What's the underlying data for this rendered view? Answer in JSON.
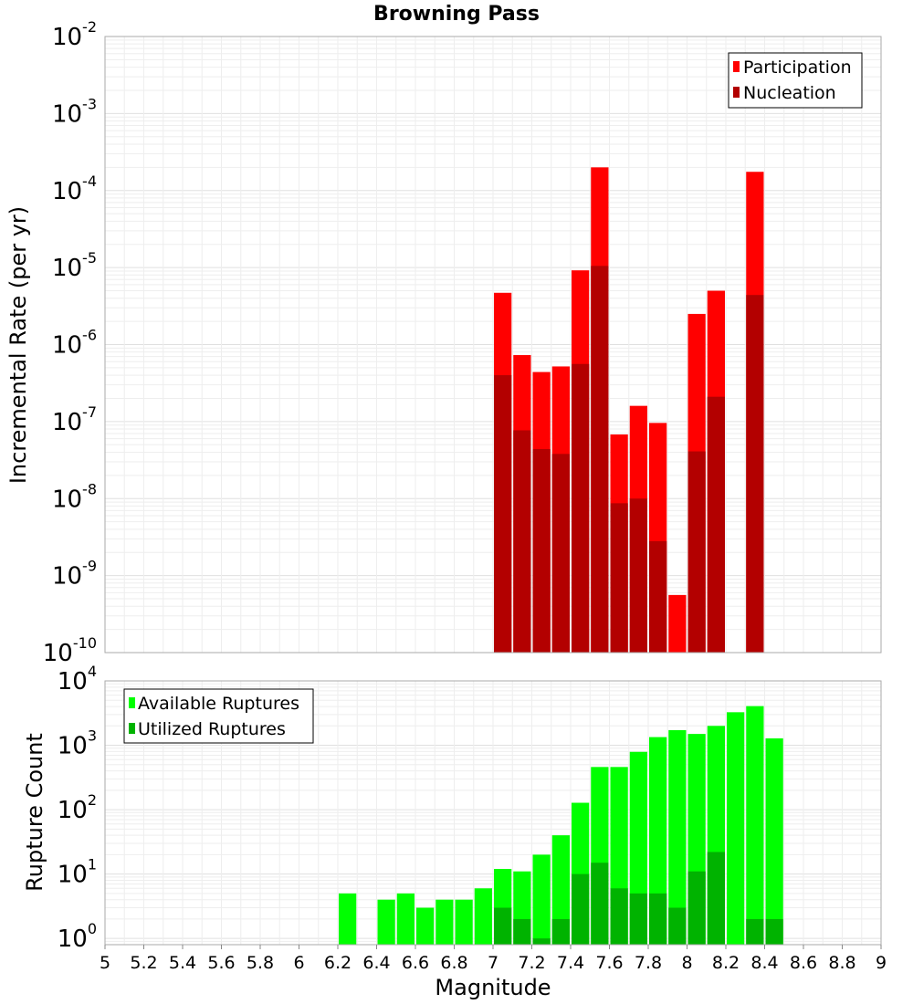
{
  "chart_data": [
    {
      "type": "bar",
      "title": "Browning Pass",
      "xlabel": "",
      "ylabel": "Incremental Rate (per yr)",
      "yscale": "log",
      "ylim": [
        1e-10,
        0.01
      ],
      "xlim": [
        5,
        9
      ],
      "ytick_labels": [
        {
          "base": "10",
          "exp": "-2"
        },
        {
          "base": "10",
          "exp": "-3"
        },
        {
          "base": "10",
          "exp": "-4"
        },
        {
          "base": "10",
          "exp": "-5"
        },
        {
          "base": "10",
          "exp": "-6"
        },
        {
          "base": "10",
          "exp": "-7"
        },
        {
          "base": "10",
          "exp": "-8"
        },
        {
          "base": "10",
          "exp": "-9"
        },
        {
          "base": "10",
          "exp": "-10"
        }
      ],
      "grid": true,
      "legend_position": "top-right",
      "series": [
        {
          "name": "Participation",
          "color": "#ff0000",
          "points": [
            {
              "x": 7.05,
              "y": 4.7e-06
            },
            {
              "x": 7.15,
              "y": 7.3e-07
            },
            {
              "x": 7.25,
              "y": 4.4e-07
            },
            {
              "x": 7.35,
              "y": 5.2e-07
            },
            {
              "x": 7.45,
              "y": 9.2e-06
            },
            {
              "x": 7.55,
              "y": 0.0002
            },
            {
              "x": 7.65,
              "y": 6.8e-08
            },
            {
              "x": 7.75,
              "y": 1.6e-07
            },
            {
              "x": 7.85,
              "y": 9.6e-08
            },
            {
              "x": 7.95,
              "y": 5.6e-10
            },
            {
              "x": 8.05,
              "y": 2.5e-06
            },
            {
              "x": 8.15,
              "y": 5e-06
            },
            {
              "x": 8.35,
              "y": 0.000175
            }
          ]
        },
        {
          "name": "Nucleation",
          "color": "#b30000",
          "points": [
            {
              "x": 7.05,
              "y": 4e-07
            },
            {
              "x": 7.15,
              "y": 7.7e-08
            },
            {
              "x": 7.25,
              "y": 4.4e-08
            },
            {
              "x": 7.35,
              "y": 3.8e-08
            },
            {
              "x": 7.45,
              "y": 5.6e-07
            },
            {
              "x": 7.55,
              "y": 1.05e-05
            },
            {
              "x": 7.65,
              "y": 8.7e-09
            },
            {
              "x": 7.75,
              "y": 1e-08
            },
            {
              "x": 7.85,
              "y": 2.8e-09
            },
            {
              "x": 8.05,
              "y": 4.1e-08
            },
            {
              "x": 8.15,
              "y": 2.1e-07
            },
            {
              "x": 8.35,
              "y": 4.4e-06
            }
          ]
        }
      ]
    },
    {
      "type": "bar",
      "title": "",
      "xlabel": "Magnitude",
      "ylabel": "Rupture Count",
      "yscale": "log",
      "ylim": [
        0.8,
        10000
      ],
      "xlim": [
        5,
        9
      ],
      "ytick_labels": [
        {
          "base": "10",
          "exp": "4"
        },
        {
          "base": "10",
          "exp": "3"
        },
        {
          "base": "10",
          "exp": "2"
        },
        {
          "base": "10",
          "exp": "1"
        },
        {
          "base": "10",
          "exp": "0"
        }
      ],
      "xtick_labels": [
        "5",
        "5.2",
        "5.4",
        "5.6",
        "5.8",
        "6",
        "6.2",
        "6.4",
        "6.6",
        "6.8",
        "7",
        "7.2",
        "7.4",
        "7.6",
        "7.8",
        "8",
        "8.2",
        "8.4",
        "8.6",
        "8.8",
        "9"
      ],
      "grid": true,
      "legend_position": "top-left",
      "series": [
        {
          "name": "Available Ruptures",
          "color": "#00ff00",
          "points": [
            {
              "x": 6.25,
              "y": 5
            },
            {
              "x": 6.45,
              "y": 4
            },
            {
              "x": 6.55,
              "y": 5
            },
            {
              "x": 6.65,
              "y": 3
            },
            {
              "x": 6.75,
              "y": 4
            },
            {
              "x": 6.85,
              "y": 4
            },
            {
              "x": 6.95,
              "y": 6
            },
            {
              "x": 7.05,
              "y": 12
            },
            {
              "x": 7.15,
              "y": 11
            },
            {
              "x": 7.25,
              "y": 20
            },
            {
              "x": 7.35,
              "y": 40
            },
            {
              "x": 7.45,
              "y": 128
            },
            {
              "x": 7.55,
              "y": 460
            },
            {
              "x": 7.65,
              "y": 460
            },
            {
              "x": 7.75,
              "y": 790
            },
            {
              "x": 7.85,
              "y": 1340
            },
            {
              "x": 7.95,
              "y": 1720
            },
            {
              "x": 8.05,
              "y": 1500
            },
            {
              "x": 8.15,
              "y": 2000
            },
            {
              "x": 8.25,
              "y": 3260
            },
            {
              "x": 8.35,
              "y": 4060
            },
            {
              "x": 8.45,
              "y": 1280
            }
          ]
        },
        {
          "name": "Utilized Ruptures",
          "color": "#00b300",
          "points": [
            {
              "x": 7.05,
              "y": 3
            },
            {
              "x": 7.15,
              "y": 2
            },
            {
              "x": 7.25,
              "y": 1
            },
            {
              "x": 7.35,
              "y": 2
            },
            {
              "x": 7.45,
              "y": 10
            },
            {
              "x": 7.55,
              "y": 15
            },
            {
              "x": 7.65,
              "y": 6
            },
            {
              "x": 7.75,
              "y": 5
            },
            {
              "x": 7.85,
              "y": 5
            },
            {
              "x": 7.95,
              "y": 3
            },
            {
              "x": 8.05,
              "y": 11
            },
            {
              "x": 8.15,
              "y": 22
            },
            {
              "x": 8.35,
              "y": 2
            },
            {
              "x": 8.45,
              "y": 2
            }
          ]
        }
      ]
    }
  ]
}
